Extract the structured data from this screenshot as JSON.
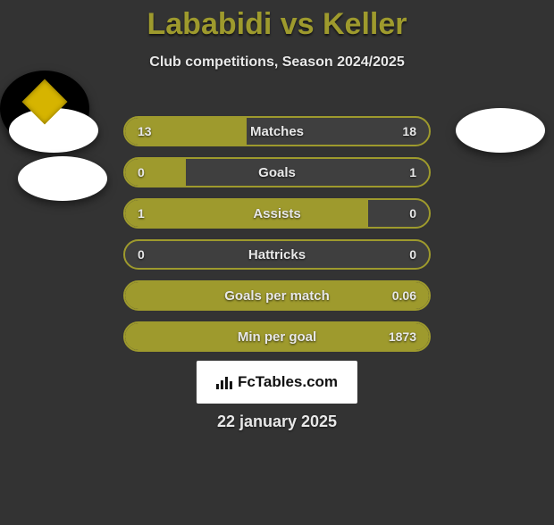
{
  "title": "Lababidi vs Keller",
  "subtitle": "Club competitions, Season 2024/2025",
  "colors": {
    "accent": "#9e9a2d",
    "bg": "#333333",
    "bar_bg": "#3f3f3f",
    "text": "#e8e8e8"
  },
  "stats": [
    {
      "label": "Matches",
      "left_val": "13",
      "right_val": "18",
      "left_pct": 40,
      "right_pct": 60
    },
    {
      "label": "Goals",
      "left_val": "0",
      "right_val": "1",
      "left_pct": 20,
      "right_pct": 80
    },
    {
      "label": "Assists",
      "left_val": "1",
      "right_val": "0",
      "left_pct": 80,
      "right_pct": 20
    },
    {
      "label": "Hattricks",
      "left_val": "0",
      "right_val": "0",
      "left_pct": 0,
      "right_pct": 0
    },
    {
      "label": "Goals per match",
      "left_val": "",
      "right_val": "0.06",
      "left_pct": 0,
      "right_pct": 100
    },
    {
      "label": "Min per goal",
      "left_val": "",
      "right_val": "1873",
      "left_pct": 0,
      "right_pct": 100
    }
  ],
  "watermark": "FcTables.com",
  "date": "22 january 2025"
}
